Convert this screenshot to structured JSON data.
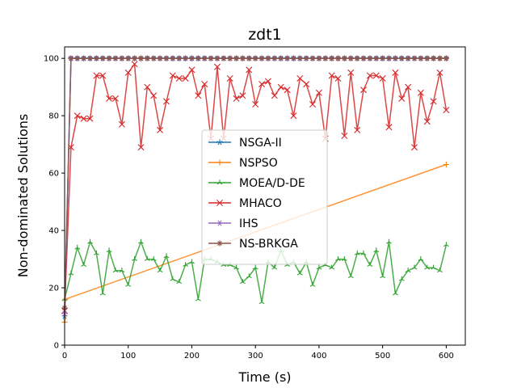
{
  "chart_data": {
    "type": "line",
    "title": "zdt1",
    "xlabel": "Time (s)",
    "ylabel": "Non-dominated Solutions",
    "xlim": [
      0,
      630
    ],
    "ylim": [
      0,
      104
    ],
    "xticks": [
      0,
      100,
      200,
      300,
      400,
      500,
      600
    ],
    "yticks": [
      0,
      20,
      40,
      60,
      80,
      100
    ],
    "grid": false,
    "legend_position": "center",
    "series": [
      {
        "name": "NSGA-II",
        "color": "#1f77b4",
        "marker": "star",
        "x": [
          0,
          10,
          20,
          30,
          40,
          50,
          60,
          70,
          80,
          90,
          100,
          110,
          120,
          130,
          140,
          150,
          160,
          170,
          180,
          190,
          200,
          210,
          220,
          230,
          240,
          250,
          260,
          270,
          280,
          290,
          300,
          310,
          320,
          330,
          340,
          350,
          360,
          370,
          380,
          390,
          400,
          410,
          420,
          430,
          440,
          450,
          460,
          470,
          480,
          490,
          500,
          510,
          520,
          530,
          540,
          550,
          560,
          570,
          580,
          590,
          600
        ],
        "y": [
          10,
          100,
          100,
          100,
          100,
          100,
          100,
          100,
          100,
          100,
          100,
          100,
          100,
          100,
          100,
          100,
          100,
          100,
          100,
          100,
          100,
          100,
          100,
          100,
          100,
          100,
          100,
          100,
          100,
          100,
          100,
          100,
          100,
          100,
          100,
          100,
          100,
          100,
          100,
          100,
          100,
          100,
          100,
          100,
          100,
          100,
          100,
          100,
          100,
          100,
          100,
          100,
          100,
          100,
          100,
          100,
          100,
          100,
          100,
          100,
          100
        ]
      },
      {
        "name": "NSPSO",
        "color": "#ff7f0e",
        "marker": "plus",
        "x": [
          0,
          1,
          600
        ],
        "y": [
          8,
          16,
          63
        ]
      },
      {
        "name": "MOEA/D-DE",
        "color": "#2ca02c",
        "marker": "tri",
        "x": [
          0,
          10,
          20,
          30,
          40,
          50,
          60,
          70,
          80,
          90,
          100,
          110,
          120,
          130,
          140,
          150,
          160,
          170,
          180,
          190,
          200,
          210,
          220,
          230,
          240,
          250,
          260,
          270,
          280,
          290,
          300,
          310,
          320,
          330,
          340,
          350,
          360,
          370,
          380,
          390,
          400,
          410,
          420,
          430,
          440,
          450,
          460,
          470,
          480,
          490,
          500,
          510,
          520,
          530,
          540,
          550,
          560,
          570,
          580,
          590,
          600
        ],
        "y": [
          16,
          25,
          34,
          28,
          36,
          32,
          18,
          33,
          26,
          26,
          21,
          30,
          36,
          30,
          30,
          26,
          31,
          23,
          22,
          28,
          29,
          16,
          30,
          30,
          29,
          28,
          28,
          27,
          22,
          24,
          27,
          15,
          29,
          27,
          33,
          28,
          29,
          25,
          29,
          21,
          27,
          28,
          27,
          30,
          30,
          24,
          32,
          32,
          28,
          33,
          24,
          36,
          18,
          23,
          26,
          27,
          30,
          27,
          27,
          26,
          35
        ]
      },
      {
        "name": "MHACO",
        "color": "#d62728",
        "marker": "x",
        "x": [
          0,
          10,
          20,
          30,
          40,
          50,
          60,
          70,
          80,
          90,
          100,
          110,
          120,
          130,
          140,
          150,
          160,
          170,
          180,
          190,
          200,
          210,
          220,
          230,
          240,
          250,
          260,
          270,
          280,
          290,
          300,
          310,
          320,
          330,
          340,
          350,
          360,
          370,
          380,
          390,
          400,
          410,
          420,
          430,
          440,
          450,
          460,
          470,
          480,
          490,
          500,
          510,
          520,
          530,
          540,
          550,
          560,
          570,
          580,
          590,
          600
        ],
        "y": [
          12,
          69,
          80,
          79,
          79,
          94,
          94,
          86,
          86,
          77,
          95,
          98,
          69,
          90,
          87,
          75,
          85,
          94,
          93,
          93,
          96,
          87,
          91,
          72,
          97,
          72,
          93,
          86,
          87,
          96,
          84,
          91,
          92,
          87,
          90,
          89,
          80,
          93,
          91,
          84,
          88,
          72,
          94,
          93,
          73,
          95,
          75,
          89,
          94,
          94,
          93,
          76,
          95,
          86,
          90,
          69,
          88,
          78,
          85,
          95,
          82
        ]
      },
      {
        "name": "IHS",
        "color": "#9467bd",
        "marker": "asterisk",
        "x": [
          0,
          10,
          20,
          30,
          40,
          50,
          60,
          70,
          80,
          90,
          100,
          110,
          120,
          130,
          140,
          150,
          160,
          170,
          180,
          190,
          200,
          210,
          220,
          230,
          240,
          250,
          260,
          270,
          280,
          290,
          300,
          310,
          320,
          330,
          340,
          350,
          360,
          370,
          380,
          390,
          400,
          410,
          420,
          430,
          440,
          450,
          460,
          470,
          480,
          490,
          500,
          510,
          520,
          530,
          540,
          550,
          560,
          570,
          580,
          590,
          600
        ],
        "y": [
          11,
          100,
          100,
          100,
          100,
          100,
          100,
          100,
          100,
          100,
          100,
          100,
          100,
          100,
          100,
          100,
          100,
          100,
          100,
          100,
          100,
          100,
          100,
          100,
          100,
          100,
          100,
          100,
          100,
          100,
          100,
          100,
          100,
          100,
          100,
          100,
          100,
          100,
          100,
          100,
          100,
          100,
          100,
          100,
          100,
          100,
          100,
          100,
          100,
          100,
          100,
          100,
          100,
          100,
          100,
          100,
          100,
          100,
          100,
          100,
          100
        ]
      },
      {
        "name": "NS-BRKGA",
        "color": "#8c564b",
        "marker": "star8",
        "x": [
          0,
          10,
          20,
          30,
          40,
          50,
          60,
          70,
          80,
          90,
          100,
          110,
          120,
          130,
          140,
          150,
          160,
          170,
          180,
          190,
          200,
          210,
          220,
          230,
          240,
          250,
          260,
          270,
          280,
          290,
          300,
          310,
          320,
          330,
          340,
          350,
          360,
          370,
          380,
          390,
          400,
          410,
          420,
          430,
          440,
          450,
          460,
          470,
          480,
          490,
          500,
          510,
          520,
          530,
          540,
          550,
          560,
          570,
          580,
          590,
          600
        ],
        "y": [
          13,
          100,
          100,
          100,
          100,
          100,
          100,
          100,
          100,
          100,
          100,
          100,
          100,
          100,
          100,
          100,
          100,
          100,
          100,
          100,
          100,
          100,
          100,
          100,
          100,
          100,
          100,
          100,
          100,
          100,
          100,
          100,
          100,
          100,
          100,
          100,
          100,
          100,
          100,
          100,
          100,
          100,
          100,
          100,
          100,
          100,
          100,
          100,
          100,
          100,
          100,
          100,
          100,
          100,
          100,
          100,
          100,
          100,
          100,
          100,
          100
        ]
      }
    ]
  }
}
